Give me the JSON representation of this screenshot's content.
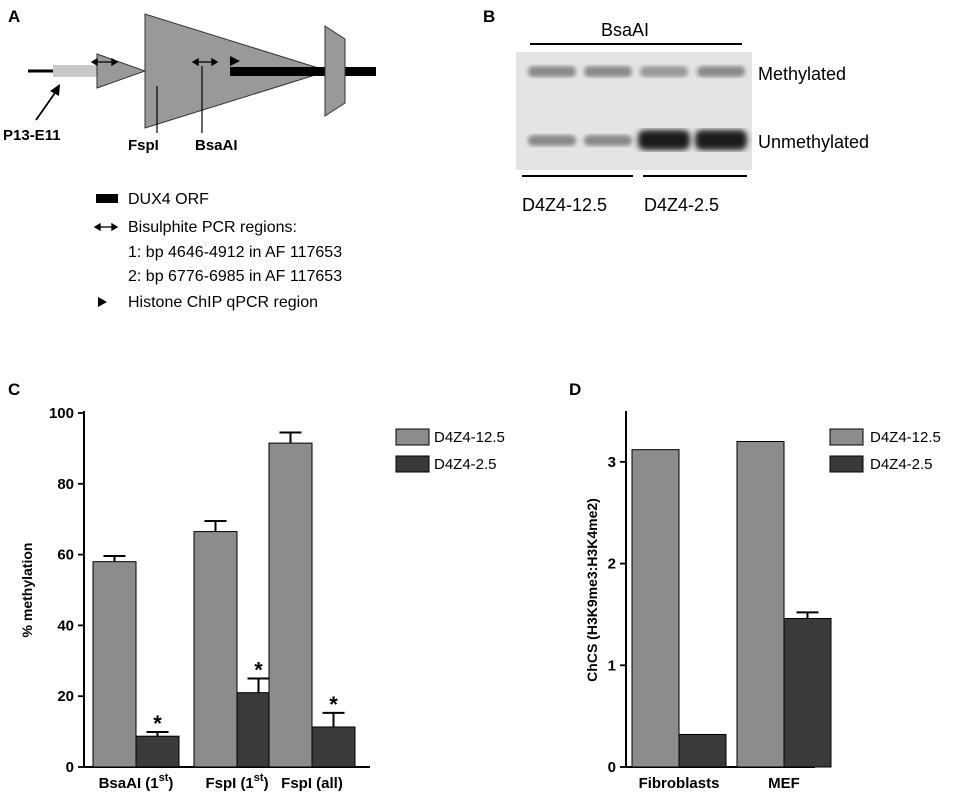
{
  "panel_a": {
    "label": "A",
    "probe_label": "P13-E11",
    "site1_label": "FspI",
    "site2_label": "BsaAI",
    "legend": {
      "orf": "DUX4 ORF",
      "bisulphite_title": "Bisulphite PCR regions:",
      "region1": "1: bp 4646-4912   in AF 117653",
      "region2": "2: bp 6776-6985   in AF 117653",
      "chip": "Histone ChIP qPCR region"
    }
  },
  "panel_b": {
    "label": "B",
    "enzyme": "BsaAI",
    "band_top": "Methylated",
    "band_bottom": "Unmethylated",
    "group1": "D4Z4-12.5",
    "group2": "D4Z4-2.5"
  },
  "chart_data": [
    {
      "panel": "C",
      "type": "bar",
      "ylabel": "% methylation",
      "ylim": [
        0,
        100
      ],
      "yticks": [
        0,
        20,
        40,
        60,
        80,
        100
      ],
      "categories": [
        "BsaAI (1",
        "FspI (1",
        "FspI (all)"
      ],
      "category_superscripts": [
        "st",
        "st",
        ""
      ],
      "category_suffix": [
        ")",
        ")",
        ""
      ],
      "series": [
        {
          "name": "D4Z4-12.5",
          "color": "#8c8c8c",
          "values": [
            58,
            66.5,
            91.5
          ],
          "errors": [
            1.6,
            3,
            3
          ]
        },
        {
          "name": "D4Z4-2.5",
          "color": "#3a3a3a",
          "values": [
            8.7,
            21,
            11.3
          ],
          "errors": [
            1.2,
            4,
            4
          ]
        }
      ],
      "annotations": [
        "*",
        "*",
        "*"
      ],
      "legend_position": "top-right"
    },
    {
      "panel": "D",
      "type": "bar",
      "ylabel": "ChCS (H3K9me3:H3K4me2)",
      "ylim": [
        0,
        3.5
      ],
      "yticks": [
        0,
        1,
        2,
        3
      ],
      "categories": [
        "Fibroblasts",
        "MEF"
      ],
      "series": [
        {
          "name": "D4Z4-12.5",
          "color": "#8c8c8c",
          "values": [
            3.12,
            3.2
          ],
          "errors": [
            0,
            0
          ]
        },
        {
          "name": "D4Z4-2.5",
          "color": "#3a3a3a",
          "values": [
            0.32,
            1.46
          ],
          "errors": [
            0,
            0.06
          ]
        }
      ],
      "legend_position": "top-right"
    }
  ]
}
